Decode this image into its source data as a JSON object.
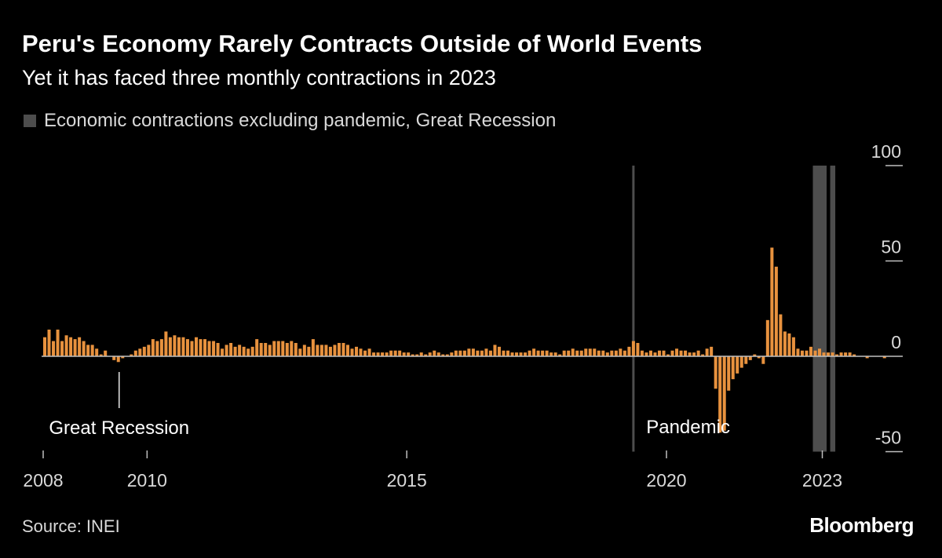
{
  "header": {
    "title": "Peru's Economy Rarely Contracts Outside of World Events",
    "subtitle": "Yet it has faced three monthly contractions in 2023"
  },
  "legend": {
    "label": "Economic contractions excluding pandemic, Great Recession",
    "swatch_color": "#4d4d4d"
  },
  "footer": {
    "source": "Source: INEI",
    "brand": "Bloomberg"
  },
  "colors": {
    "bar": "#e8923e",
    "background": "#000000",
    "shade": "#4d4d4d"
  },
  "chart_data": {
    "type": "bar",
    "x_unit": "monthly, Jan 2008 – Jun 2023",
    "start": "2008-01",
    "ylim": [
      -50,
      100
    ],
    "y_ticks": [
      100,
      50,
      0,
      -50
    ],
    "x_ticks": [
      "2008",
      "2010",
      "2015",
      "2020",
      "2023"
    ],
    "grid": false,
    "legend_position": "top-left",
    "shaded_periods": [
      {
        "start": "2022-11",
        "end": "2023-01",
        "color": "#4d4d4d"
      },
      {
        "start": "2023-03",
        "end": "2023-03",
        "color": "#4d4d4d"
      }
    ],
    "event_lines": [
      {
        "date": "2019-05",
        "color": "#4d4d4d"
      }
    ],
    "annotations": [
      {
        "label": "Great Recession",
        "date": "2009-06"
      },
      {
        "label": "Pandemic",
        "date": "2020-06"
      }
    ],
    "series": [
      {
        "values": [
          10,
          14,
          8,
          14,
          8,
          11,
          10,
          9,
          10,
          8,
          6,
          6,
          4,
          1,
          3,
          0,
          -2,
          -3,
          -1,
          0,
          1,
          3,
          4,
          5,
          6,
          9,
          8,
          9,
          13,
          10,
          11,
          10,
          10,
          9,
          8,
          10,
          9,
          9,
          8,
          8,
          7,
          4,
          6,
          7,
          5,
          6,
          5,
          4,
          5,
          9,
          7,
          7,
          6,
          8,
          8,
          8,
          7,
          8,
          7,
          4,
          6,
          5,
          9,
          6,
          6,
          6,
          5,
          6,
          7,
          7,
          6,
          4,
          5,
          4,
          3,
          4,
          2,
          2,
          2,
          2,
          3,
          3,
          3,
          2,
          2,
          1,
          1,
          2,
          1,
          2,
          3,
          2,
          1,
          1,
          2,
          3,
          3,
          3,
          4,
          4,
          3,
          3,
          4,
          3,
          6,
          5,
          3,
          3,
          2,
          2,
          2,
          2,
          3,
          4,
          3,
          3,
          3,
          2,
          2,
          1,
          3,
          3,
          4,
          3,
          3,
          4,
          4,
          4,
          3,
          3,
          2,
          3,
          3,
          4,
          3,
          5,
          8,
          7,
          3,
          2,
          3,
          2,
          3,
          3,
          1,
          3,
          4,
          3,
          3,
          2,
          2,
          3,
          1,
          4,
          5,
          -17,
          -40,
          -39,
          -18,
          -12,
          -9,
          -6,
          -4,
          -2,
          1,
          -1,
          -4,
          19,
          57,
          47,
          22,
          13,
          12,
          10,
          4,
          3,
          3,
          5,
          3,
          4,
          2,
          2,
          2,
          1,
          2,
          2,
          2,
          1,
          0,
          0,
          -1,
          0,
          0,
          0,
          -1,
          0,
          0
        ]
      }
    ]
  }
}
